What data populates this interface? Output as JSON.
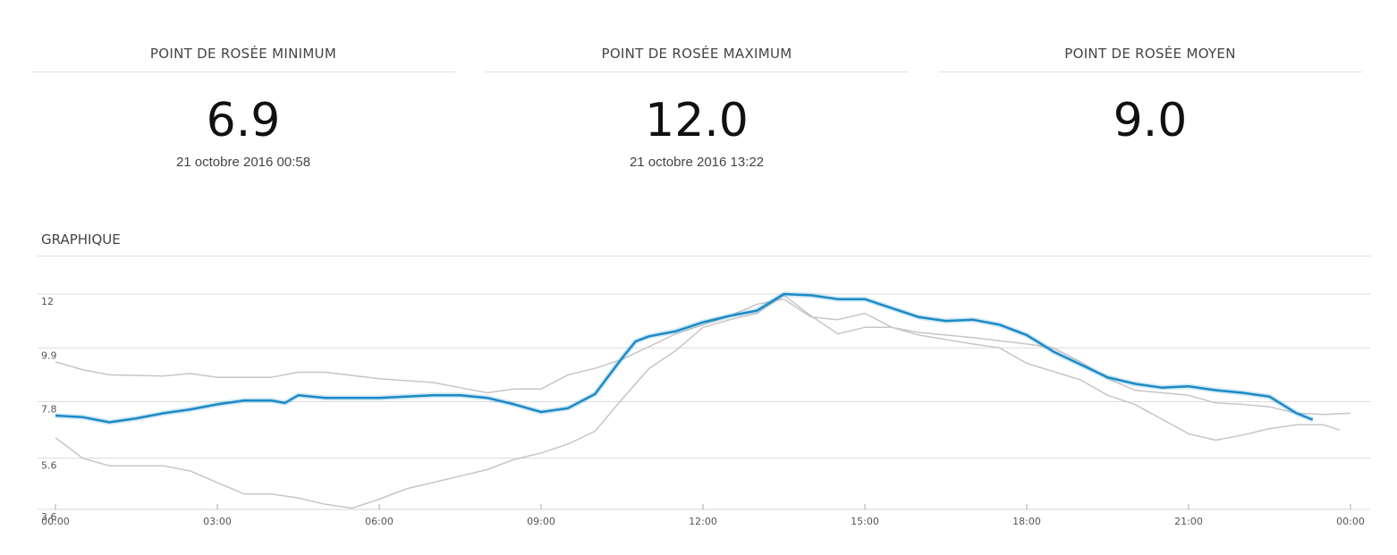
{
  "stats": [
    {
      "title": "POINT DE ROSÉE MINIMUM",
      "value": "6.9",
      "date": "21 octobre 2016 00:58"
    },
    {
      "title": "POINT DE ROSÉE MAXIMUM",
      "value": "12.0",
      "date": "21 octobre 2016 13:22"
    },
    {
      "title": "POINT DE ROSÉE MOYEN",
      "value": "9.0"
    }
  ],
  "section_title": "GRAPHIQUE",
  "chart_data": {
    "type": "line",
    "xlim": [
      0,
      24
    ],
    "xticks": [
      {
        "value": 0,
        "label": "00:00"
      },
      {
        "value": 3,
        "label": "03:00"
      },
      {
        "value": 6,
        "label": "06:00"
      },
      {
        "value": 9,
        "label": "09:00"
      },
      {
        "value": 12,
        "label": "12:00"
      },
      {
        "value": 15,
        "label": "15:00"
      },
      {
        "value": 18,
        "label": "18:00"
      },
      {
        "value": 21,
        "label": "21:00"
      },
      {
        "value": 24,
        "label": "00:00"
      }
    ],
    "ylim": [
      3.6,
      12
    ],
    "yticks": [
      3.6,
      5.6,
      7.8,
      9.9,
      12
    ],
    "grid": true,
    "series": [
      {
        "color": "#c9c5c5",
        "x": [
          0,
          0.5,
          1,
          2,
          2.5,
          3,
          4,
          4.5,
          5,
          6,
          7,
          8,
          8.5,
          9,
          9.5,
          10,
          10.5,
          11,
          11.5,
          12,
          12.5,
          13,
          13.5,
          14,
          14.5,
          15,
          15.5,
          16,
          17,
          18,
          18.5,
          19,
          19.5,
          20,
          21,
          21.5,
          22,
          22.5,
          23,
          23.5,
          24
        ],
        "values": [
          9.35,
          9.05,
          8.85,
          8.8,
          8.9,
          8.75,
          8.75,
          8.95,
          8.95,
          8.7,
          8.55,
          8.15,
          8.3,
          8.3,
          8.85,
          9.1,
          9.45,
          9.95,
          10.45,
          10.8,
          11.15,
          11.6,
          11.8,
          11.1,
          11.0,
          11.25,
          10.7,
          10.5,
          10.3,
          10.05,
          9.9,
          9.35,
          8.7,
          8.25,
          8.05,
          7.75,
          7.7,
          7.6,
          7.35,
          7.3,
          7.35
        ]
      },
      {
        "color": "#c9c5c5",
        "x": [
          0,
          0.5,
          1,
          1.5,
          2,
          2.5,
          3,
          3.5,
          4,
          4.5,
          5,
          5.5,
          6,
          6.5,
          7,
          7.5,
          8,
          8.5,
          9,
          9.5,
          10,
          10.5,
          11,
          11.5,
          12,
          12.5,
          13,
          13.5,
          14,
          14.5,
          15,
          15.5,
          16,
          17,
          17.5,
          18,
          19,
          19.5,
          20,
          21,
          21.5,
          22,
          22.5,
          23,
          23.5,
          23.8
        ],
        "values": [
          6.4,
          5.6,
          5.3,
          5.3,
          5.3,
          5.1,
          4.65,
          4.2,
          4.2,
          4.05,
          3.8,
          3.65,
          4.0,
          4.4,
          4.65,
          4.9,
          5.15,
          5.55,
          5.8,
          6.15,
          6.65,
          7.9,
          9.1,
          9.8,
          10.7,
          11.0,
          11.25,
          11.95,
          11.15,
          10.45,
          10.7,
          10.7,
          10.4,
          10.05,
          9.9,
          9.3,
          8.65,
          8.05,
          7.7,
          6.55,
          6.3,
          6.5,
          6.75,
          6.9,
          6.9,
          6.7
        ]
      },
      {
        "color": "#1b8ac6",
        "x": [
          0,
          0.5,
          1,
          1.5,
          2,
          2.5,
          3,
          3.5,
          4,
          4.25,
          4.5,
          5,
          6,
          7,
          7.5,
          8,
          8.5,
          9,
          9.5,
          10,
          10.5,
          10.75,
          11,
          11.5,
          12,
          12.5,
          13,
          13.5,
          14,
          14.5,
          15,
          15.5,
          16,
          16.5,
          17,
          17.5,
          18,
          18.5,
          19,
          19.5,
          20,
          20.5,
          21,
          21.5,
          22,
          22.5,
          23,
          23.3
        ],
        "values": [
          7.26,
          7.2,
          7.0,
          7.15,
          7.35,
          7.5,
          7.7,
          7.85,
          7.85,
          7.75,
          8.05,
          7.95,
          7.95,
          8.05,
          8.05,
          7.95,
          7.7,
          7.4,
          7.55,
          8.1,
          9.5,
          10.15,
          10.35,
          10.55,
          10.9,
          11.15,
          11.35,
          12.0,
          11.95,
          11.8,
          11.8,
          11.45,
          11.1,
          10.95,
          11.0,
          10.8,
          10.4,
          9.75,
          9.25,
          8.75,
          8.5,
          8.35,
          8.4,
          8.25,
          8.15,
          8.0,
          7.35,
          7.1
        ]
      }
    ]
  }
}
